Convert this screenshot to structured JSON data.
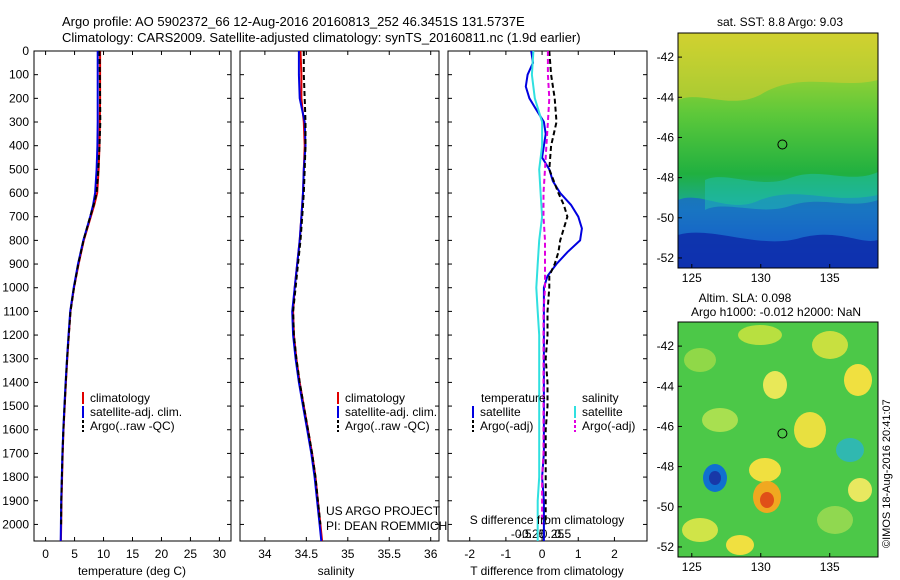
{
  "header": {
    "title_line1": "Argo profile: AO 5902372_66 12-Aug-2016 20160813_252 46.3451S 131.5737E",
    "title_line2": "Climatology: CARS2009. Satellite-adjusted climatology: synTS_20160811.nc (1.9d earlier)"
  },
  "colors": {
    "climatology": "#e00000",
    "satellite": "#0000e0",
    "argo": "#000000",
    "salinity_satellite": "#30e0e0",
    "salinity_argo": "#e000e0"
  },
  "icons": {
    "float_marker": "circle-marker-icon"
  },
  "chart_data": [
    {
      "type": "line",
      "title": "",
      "xlabel": "temperature (deg C)",
      "ylabel": "",
      "xlim": [
        -2,
        32
      ],
      "ylim": [
        2070,
        0
      ],
      "xticks": [
        0,
        5,
        10,
        15,
        20,
        25,
        30
      ],
      "xticklabels": [
        "0",
        "5",
        "10",
        "15",
        "20",
        "25",
        "30"
      ],
      "yticks": [
        0,
        100,
        200,
        300,
        400,
        500,
        600,
        700,
        800,
        900,
        1000,
        1100,
        1200,
        1300,
        1400,
        1500,
        1600,
        1700,
        1800,
        1900,
        2000
      ],
      "yticklabels": [
        "0",
        "100",
        "200",
        "300",
        "400",
        "500",
        "600",
        "700",
        "800",
        "900",
        "1000",
        "1100",
        "1200",
        "1300",
        "1400",
        "1500",
        "1600",
        "1700",
        "1800",
        "1900",
        "2000"
      ],
      "legend": [
        "climatology",
        "satellite-adj. clim.",
        "Argo(..raw -QC)"
      ],
      "legend_position": "lower-right",
      "series": [
        {
          "name": "climatology",
          "color": "#e00000",
          "depth": [
            0,
            100,
            200,
            300,
            400,
            500,
            600,
            650,
            700,
            800,
            900,
            1000,
            1100,
            1200,
            1300,
            1400,
            1500,
            1600,
            1700,
            1800,
            1900,
            2000,
            2070
          ],
          "values": [
            9.4,
            9.4,
            9.4,
            9.35,
            9.3,
            9.15,
            8.9,
            8.4,
            7.8,
            6.6,
            5.7,
            4.9,
            4.3,
            4.0,
            3.75,
            3.5,
            3.3,
            3.1,
            2.95,
            2.85,
            2.75,
            2.7,
            2.65
          ]
        },
        {
          "name": "satellite-adj. clim.",
          "color": "#0000e0",
          "depth": [
            0,
            100,
            200,
            300,
            400,
            500,
            600,
            650,
            700,
            800,
            900,
            1000,
            1100,
            1200,
            1300,
            1400,
            1500,
            1600,
            1700,
            1800,
            1900,
            2000,
            2070
          ],
          "values": [
            9.0,
            9.0,
            9.0,
            9.0,
            8.95,
            8.8,
            8.55,
            8.2,
            7.7,
            6.5,
            5.6,
            4.85,
            4.25,
            3.95,
            3.7,
            3.45,
            3.25,
            3.05,
            2.9,
            2.8,
            2.7,
            2.65,
            2.6
          ]
        },
        {
          "name": "Argo(..raw -QC)",
          "color": "#000000",
          "dashed": true,
          "depth": [
            0,
            100,
            200,
            300,
            400,
            500,
            600,
            650,
            700,
            800,
            900,
            1000,
            1100,
            1200,
            1300,
            1400,
            1500,
            1600,
            1700,
            1800,
            1900,
            2000
          ],
          "values": [
            9.3,
            9.35,
            9.4,
            9.45,
            9.3,
            9.1,
            8.8,
            8.3,
            7.7,
            6.55,
            5.65,
            4.9,
            4.3,
            4.0,
            3.72,
            3.48,
            3.28,
            3.08,
            2.92,
            2.82,
            2.72,
            2.68
          ]
        }
      ]
    },
    {
      "type": "line",
      "title": "",
      "xlabel": "salinity",
      "ylabel": "",
      "xlim": [
        33.7,
        36.1
      ],
      "ylim": [
        2070,
        0
      ],
      "xticks": [
        34,
        34.5,
        35,
        35.5,
        36
      ],
      "xticklabels": [
        "34",
        "34.5",
        "35",
        "35.5",
        "36"
      ],
      "legend": [
        "climatology",
        "satellite-adj. clim.",
        "Argo(..raw -QC)"
      ],
      "legend_position": "lower-right",
      "annotation": [
        "US ARGO PROJECT",
        "PI: DEAN ROEMMICH"
      ],
      "series": [
        {
          "name": "climatology",
          "color": "#e00000",
          "depth": [
            0,
            100,
            200,
            300,
            400,
            500,
            600,
            700,
            800,
            900,
            1000,
            1100,
            1200,
            1300,
            1400,
            1500,
            1600,
            1700,
            1800,
            1900,
            2000,
            2070
          ],
          "values": [
            34.43,
            34.44,
            34.44,
            34.47,
            34.48,
            34.47,
            34.46,
            34.44,
            34.42,
            34.39,
            34.36,
            34.34,
            34.35,
            34.38,
            34.42,
            34.47,
            34.52,
            34.57,
            34.61,
            34.64,
            34.67,
            34.69
          ]
        },
        {
          "name": "satellite-adj. clim.",
          "color": "#0000e0",
          "depth": [
            0,
            100,
            200,
            300,
            400,
            500,
            600,
            700,
            800,
            900,
            1000,
            1100,
            1200,
            1300,
            1400,
            1500,
            1600,
            1700,
            1800,
            1900,
            2000,
            2070
          ],
          "values": [
            34.41,
            34.41,
            34.42,
            34.48,
            34.49,
            34.47,
            34.46,
            34.44,
            34.42,
            34.39,
            34.36,
            34.33,
            34.34,
            34.37,
            34.41,
            34.46,
            34.51,
            34.56,
            34.6,
            34.63,
            34.66,
            34.68
          ]
        },
        {
          "name": "Argo(..raw -QC)",
          "color": "#000000",
          "dashed": true,
          "depth": [
            0,
            100,
            200,
            300,
            400,
            500,
            600,
            700,
            800,
            900,
            1000,
            1100,
            1200,
            1300,
            1400,
            1500,
            1600,
            1700,
            1800,
            1900,
            2000
          ],
          "values": [
            34.47,
            34.47,
            34.48,
            34.49,
            34.49,
            34.48,
            34.47,
            34.45,
            34.43,
            34.4,
            34.37,
            34.34,
            34.35,
            34.38,
            34.42,
            34.47,
            34.52,
            34.57,
            34.61,
            34.64,
            34.67
          ]
        }
      ]
    },
    {
      "type": "line",
      "title": "",
      "xlabel": "T difference from climatology",
      "xlabel_top": "S difference from climatology",
      "xlim": [
        -2.6,
        2.9
      ],
      "ylim": [
        2070,
        0
      ],
      "xticks": [
        -2,
        -1,
        0,
        1,
        2
      ],
      "xticklabels": [
        "-2",
        "-1",
        "0",
        "1",
        "2"
      ],
      "sticks": [
        -0.5,
        -0.25,
        0,
        0.25,
        0.5
      ],
      "sticklabels": [
        "-0.5",
        "-0.25",
        "0",
        "0.25",
        "0.5"
      ],
      "legend_headers": [
        "temperature",
        "salinity"
      ],
      "legend": [
        "satellite",
        "Argo(-adj)",
        "satellite",
        "Argo(-adj)"
      ],
      "legend_position": "lower-right",
      "series": [
        {
          "name": "temperature satellite",
          "color": "#0000e0",
          "depth": [
            0,
            50,
            100,
            150,
            200,
            250,
            300,
            350,
            400,
            450,
            500,
            550,
            600,
            650,
            700,
            750,
            800,
            850,
            900,
            950,
            1000,
            1100,
            1200,
            1300,
            1400,
            1500,
            1600,
            1700,
            1800,
            1900,
            2000,
            2070
          ],
          "values": [
            -0.3,
            -0.25,
            -0.4,
            -0.45,
            -0.35,
            -0.15,
            0.05,
            0.1,
            0.05,
            0.0,
            0.2,
            0.3,
            0.5,
            0.8,
            1.0,
            1.1,
            1.05,
            0.7,
            0.4,
            0.15,
            0.05,
            0.05,
            0.05,
            0.05,
            0.05,
            0.05,
            0.05,
            0.05,
            0.0,
            0.05,
            0.05,
            0.05
          ]
        },
        {
          "name": "temperature Argo(-adj)",
          "color": "#000000",
          "dashed": true,
          "depth": [
            0,
            100,
            200,
            300,
            400,
            500,
            600,
            650,
            700,
            750,
            800,
            850,
            900,
            950,
            1000,
            1100,
            1200,
            1300,
            1400,
            1500,
            1600,
            1700,
            1800,
            1900,
            2000
          ],
          "values": [
            0.2,
            0.25,
            0.35,
            0.4,
            0.25,
            0.2,
            0.45,
            0.6,
            0.7,
            0.6,
            0.5,
            0.45,
            0.35,
            0.2,
            0.2,
            0.15,
            0.15,
            0.1,
            0.15,
            0.15,
            0.1,
            0.1,
            0.1,
            0.1,
            0.1
          ]
        },
        {
          "name": "salinity satellite",
          "color": "#30e0e0",
          "depth": [
            0,
            100,
            200,
            300,
            400,
            500,
            600,
            700,
            800,
            900,
            1000,
            1100,
            1200,
            1300,
            1400,
            1500,
            1600,
            1700,
            1800,
            1900,
            2000,
            2070
          ],
          "values": [
            -0.06,
            -0.07,
            -0.05,
            0.0,
            0.0,
            -0.02,
            -0.01,
            0.0,
            -0.02,
            -0.03,
            -0.04,
            -0.03,
            -0.02,
            -0.02,
            -0.02,
            -0.02,
            -0.02,
            -0.02,
            -0.02,
            -0.03,
            -0.03,
            -0.03
          ]
        },
        {
          "name": "salinity Argo(-adj)",
          "color": "#e000e0",
          "dashed": true,
          "depth": [
            0,
            100,
            200,
            300,
            400,
            500,
            600,
            700,
            800,
            900,
            1000,
            1100,
            1200,
            1300,
            1400,
            1500,
            1600,
            1700,
            1800,
            1900,
            2000
          ],
          "values": [
            0.04,
            0.04,
            0.05,
            0.04,
            0.03,
            0.02,
            0.01,
            0.01,
            0.02,
            0.02,
            0.02,
            0.01,
            0.01,
            0.01,
            0.01,
            0.01,
            0.01,
            0.01,
            0.0,
            0.0,
            0.0
          ]
        }
      ]
    },
    {
      "type": "heatmap",
      "title": "sat. SST: 8.8 Argo: 9.03",
      "xlim": [
        124,
        138.5
      ],
      "ylim": [
        -52.5,
        -40.8
      ],
      "xticks": [
        125,
        130,
        135
      ],
      "xticklabels": [
        "125",
        "130",
        "135"
      ],
      "yticks": [
        -42,
        -44,
        -46,
        -48,
        -50,
        -52
      ],
      "yticklabels": [
        "-42",
        "-44",
        "-46",
        "-48",
        "-50",
        "-52"
      ],
      "marker": [
        131.57,
        -46.35
      ]
    },
    {
      "type": "heatmap",
      "title_line1": "Altim. SLA: 0.098",
      "title_line2": "Argo h1000: -0.012 h2000: NaN",
      "xlim": [
        124,
        138.5
      ],
      "ylim": [
        -52.5,
        -40.8
      ],
      "xticks": [
        125,
        130,
        135
      ],
      "xticklabels": [
        "125",
        "130",
        "135"
      ],
      "yticks": [
        -42,
        -44,
        -46,
        -48,
        -50,
        -52
      ],
      "yticklabels": [
        "-42",
        "-44",
        "-46",
        "-48",
        "-50",
        "-52"
      ],
      "marker": [
        131.57,
        -46.35
      ],
      "side_label": "©IMOS 18-Aug-2016 20:41:07"
    }
  ]
}
